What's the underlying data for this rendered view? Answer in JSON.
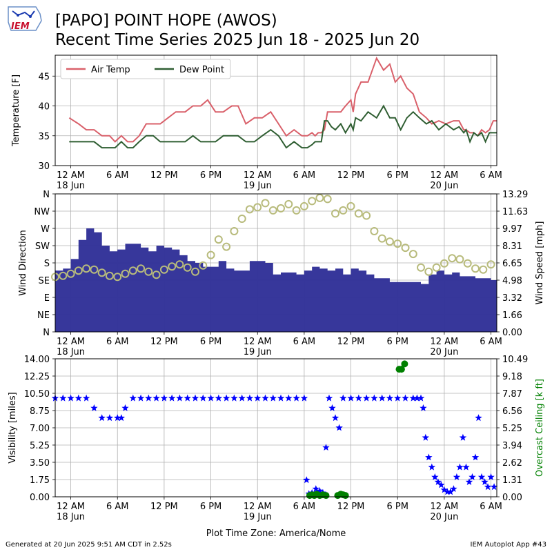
{
  "header": {
    "title_line1": "[PAPO] POINT HOPE (AWOS)",
    "title_line2": "Recent Time Series 2025 Jun 18 - 2025 Jun 20",
    "logo_text": "IEM"
  },
  "footer": {
    "generated": "Generated at 20 Jun 2025 9:51 AM CDT in 2.52s",
    "app": "IEM Autoplot App #43"
  },
  "chart_data": [
    {
      "type": "line",
      "name": "temperature-panel",
      "ylabel": "Temperature [F]",
      "ylim": [
        30,
        48.5
      ],
      "yticks": [
        30,
        35,
        40,
        45
      ],
      "grid": true,
      "legend": "top-left",
      "x_unit": "hours since 2025-06-17 22:00 AKDT",
      "xlim": [
        0,
        56.75
      ],
      "xticks": [
        {
          "h": 2,
          "label": "12 AM",
          "sub": "18 Jun"
        },
        {
          "h": 8,
          "label": "6 AM",
          "sub": ""
        },
        {
          "h": 14,
          "label": "12 PM",
          "sub": ""
        },
        {
          "h": 20,
          "label": "6 PM",
          "sub": ""
        },
        {
          "h": 26,
          "label": "12 AM",
          "sub": "19 Jun"
        },
        {
          "h": 32,
          "label": "6 AM",
          "sub": ""
        },
        {
          "h": 38,
          "label": "12 PM",
          "sub": ""
        },
        {
          "h": 44,
          "label": "6 PM",
          "sub": ""
        },
        {
          "h": 50,
          "label": "12 AM",
          "sub": "20 Jun"
        },
        {
          "h": 56,
          "label": "6 AM",
          "sub": ""
        }
      ],
      "series": [
        {
          "name": "Air Temp",
          "color": "#d9606a",
          "x": [
            1.8,
            3,
            4,
            5,
            6,
            7,
            7.7,
            8.5,
            9.3,
            10,
            10.8,
            11.7,
            12.6,
            13.5,
            14.5,
            15.5,
            16.7,
            17.7,
            18.7,
            19.6,
            20.6,
            21.6,
            22.7,
            23.5,
            24.5,
            25.6,
            26.6,
            27.7,
            28.7,
            29.7,
            30.7,
            31.7,
            32.4,
            33,
            33.4,
            33.8,
            34.2,
            34.6,
            35,
            35.5,
            36,
            36.7,
            37.3,
            38,
            38.3,
            38.6,
            39.3,
            40.2,
            41.3,
            42.2,
            43,
            43.7,
            44.4,
            45.2,
            46,
            46.8,
            47.7,
            48.4,
            49.3,
            50.2,
            51.2,
            51.9,
            52.5,
            52.8,
            53.3,
            53.8,
            54.3,
            54.8,
            55.3,
            55.8,
            56.3,
            56.75
          ],
          "y": [
            38,
            37,
            36,
            36,
            35,
            35,
            34,
            35,
            34,
            34,
            35,
            37,
            37,
            37,
            38,
            39,
            39,
            40,
            40,
            41,
            39,
            39,
            40,
            40,
            37,
            38,
            38,
            39,
            37,
            35,
            36,
            35,
            35,
            35.5,
            35,
            35.5,
            35.5,
            36,
            39,
            39,
            39,
            39,
            40,
            41,
            39,
            42,
            44,
            44,
            48,
            46,
            47,
            44,
            45,
            43,
            42,
            39,
            38,
            37,
            37.5,
            37,
            37.5,
            37.5,
            36,
            36,
            35.5,
            35.5,
            35,
            36,
            35.5,
            36,
            37.5,
            37.5
          ]
        },
        {
          "name": "Dew Point",
          "color": "#2f5e32",
          "x": [
            1.8,
            3,
            4,
            5,
            6,
            7,
            7.7,
            8.5,
            9.3,
            10,
            10.8,
            11.7,
            12.6,
            13.5,
            14.5,
            15.5,
            16.7,
            17.7,
            18.7,
            19.6,
            20.6,
            21.6,
            22.7,
            23.5,
            24.5,
            25.6,
            26.6,
            27.7,
            28.7,
            29.7,
            30.7,
            31.7,
            32.4,
            33,
            33.4,
            33.8,
            34.2,
            34.6,
            35,
            35.5,
            36,
            36.7,
            37.3,
            38,
            38.3,
            38.6,
            39.3,
            40.2,
            41.3,
            42.2,
            43,
            43.7,
            44.4,
            45.2,
            46,
            46.8,
            47.7,
            48.4,
            49.3,
            50.2,
            51.2,
            51.9,
            52.5,
            52.8,
            53.3,
            53.8,
            54.3,
            54.8,
            55.3,
            55.8,
            56.3,
            56.75
          ],
          "y": [
            34,
            34,
            34,
            34,
            33,
            33,
            33,
            34,
            33,
            33,
            34,
            35,
            35,
            34,
            34,
            34,
            34,
            35,
            34,
            34,
            34,
            35,
            35,
            35,
            34,
            34,
            35,
            36,
            35,
            33,
            34,
            33,
            33,
            33.5,
            34,
            34,
            34,
            37.5,
            37.5,
            36.5,
            36,
            37,
            35.5,
            37,
            36,
            38,
            37.5,
            39,
            38,
            40,
            38,
            38,
            36,
            38,
            39,
            38,
            37,
            37.5,
            36,
            37,
            36,
            36.5,
            35.5,
            36,
            34,
            35.5,
            35,
            35.5,
            34,
            35.5,
            35.5,
            35.5
          ]
        }
      ]
    },
    {
      "type": "bar+scatter",
      "name": "wind-panel",
      "ylabel": "Wind Direction",
      "ylabel_right": "Wind Speed [mph]",
      "ylim": [
        0,
        360
      ],
      "yticks": [
        {
          "v": 0,
          "label": "N"
        },
        {
          "v": 45,
          "label": "NE"
        },
        {
          "v": 90,
          "label": "E"
        },
        {
          "v": 135,
          "label": "SE"
        },
        {
          "v": 180,
          "label": "S"
        },
        {
          "v": 225,
          "label": "SW"
        },
        {
          "v": 270,
          "label": "W"
        },
        {
          "v": 315,
          "label": "NW"
        },
        {
          "v": 360,
          "label": "N"
        }
      ],
      "ylim_right": [
        0,
        13.29
      ],
      "yticks_right": [
        "0.00",
        "1.66",
        "3.32",
        "4.98",
        "6.65",
        "8.31",
        "9.97",
        "11.63",
        "13.29"
      ],
      "grid": true,
      "bar_color": "#333399",
      "marker_color": "#b8bb7c",
      "speed_series": {
        "name": "Wind Speed",
        "x": [
          0,
          1,
          2,
          3,
          4,
          5,
          6,
          7,
          8,
          9,
          10,
          11,
          12,
          13,
          14,
          15,
          16,
          17,
          18,
          19,
          20,
          21,
          22,
          23,
          24,
          25,
          26,
          27,
          28,
          29,
          30,
          31,
          32,
          33,
          34,
          35,
          36,
          37,
          38,
          39,
          40,
          41,
          42,
          43,
          44,
          45,
          46,
          47,
          48,
          49,
          50,
          51,
          52,
          53,
          54,
          55,
          56
        ],
        "y": [
          5.3,
          5.4,
          5.6,
          5.9,
          6.1,
          6.0,
          5.7,
          5.4,
          5.3,
          5.6,
          5.9,
          6.1,
          5.8,
          5.5,
          6.0,
          6.3,
          6.5,
          6.2,
          5.8,
          6.4,
          7.4,
          8.9,
          8.2,
          9.7,
          10.9,
          11.8,
          12.0,
          12.4,
          11.7,
          11.9,
          12.3,
          11.7,
          12.1,
          12.6,
          12.9,
          12.8,
          11.4,
          11.7,
          12.1,
          11.4,
          11.2,
          9.7,
          9.0,
          8.7,
          8.5,
          8.1,
          7.5,
          6.2,
          5.8,
          6.2,
          6.6,
          7.1,
          7.0,
          6.6,
          6.1,
          6.0,
          6.5
        ]
      },
      "direction_series": {
        "name": "Wind Direction",
        "x": [
          0,
          1,
          2,
          3,
          4,
          5,
          6,
          7,
          8,
          9,
          10,
          11,
          12,
          13,
          14,
          15,
          16,
          17,
          18,
          19,
          20,
          21,
          22,
          23,
          24,
          25,
          26,
          27,
          28,
          29,
          30,
          31,
          32,
          33,
          34,
          35,
          36,
          37,
          38,
          39,
          40,
          41,
          42,
          43,
          44,
          45,
          46,
          47,
          48,
          49,
          50,
          51,
          52,
          53,
          54,
          55,
          56
        ],
        "y": [
          160,
          165,
          190,
          240,
          270,
          260,
          225,
          210,
          215,
          230,
          230,
          220,
          210,
          225,
          220,
          215,
          200,
          185,
          180,
          170,
          170,
          185,
          165,
          160,
          160,
          185,
          185,
          180,
          150,
          155,
          155,
          150,
          160,
          170,
          165,
          160,
          165,
          150,
          165,
          160,
          150,
          140,
          140,
          130,
          130,
          130,
          130,
          125,
          150,
          160,
          150,
          155,
          145,
          145,
          140,
          140,
          135
        ]
      }
    },
    {
      "type": "scatter",
      "name": "visibility-panel",
      "ylabel": "Visibility [miles]",
      "ylabel_right": "Overcast Ceiling [k ft]",
      "ylim": [
        0,
        14
      ],
      "yticks": [
        "0.00",
        "1.75",
        "3.50",
        "5.25",
        "7.00",
        "8.75",
        "10.50",
        "12.25",
        "14.00"
      ],
      "ylim_right": [
        0,
        10.49
      ],
      "yticks_right": [
        "0.00",
        "1.31",
        "2.62",
        "3.94",
        "5.25",
        "6.56",
        "7.87",
        "9.18",
        "10.49"
      ],
      "grid": true,
      "visibility_color": "#0000ff",
      "ceiling_color": "#008000",
      "visibility_series": {
        "name": "Visibility",
        "x": [
          0,
          1,
          2,
          3,
          4,
          5,
          6,
          7,
          8,
          8.5,
          9,
          10,
          11,
          12,
          13,
          14,
          15,
          16,
          17,
          18,
          19,
          20,
          21,
          22,
          23,
          24,
          25,
          26,
          27,
          28,
          29,
          30,
          31,
          32,
          32.3,
          32.6,
          33,
          33.5,
          34,
          34.4,
          34.8,
          35.2,
          35.6,
          36,
          36.5,
          37,
          38,
          39,
          40,
          41,
          42,
          43,
          44,
          45,
          46,
          46.5,
          47,
          47.3,
          47.6,
          48,
          48.4,
          48.8,
          49.2,
          49.6,
          50,
          50.4,
          50.8,
          51.2,
          51.6,
          52,
          52.4,
          52.8,
          53.2,
          53.6,
          54,
          54.4,
          54.8,
          55.2,
          55.6,
          56,
          56.4
        ],
        "y": [
          10,
          10,
          10,
          10,
          10,
          9,
          8,
          8,
          8,
          8,
          9,
          10,
          10,
          10,
          10,
          10,
          10,
          10,
          10,
          10,
          10,
          10,
          10,
          10,
          10,
          10,
          10,
          10,
          10,
          10,
          10,
          10,
          10,
          10,
          1.7,
          0.3,
          0.4,
          0.8,
          0.6,
          0.4,
          5,
          10,
          9,
          8,
          7,
          10,
          10,
          10,
          10,
          10,
          10,
          10,
          10,
          10,
          10,
          10,
          10,
          9,
          6,
          4,
          3,
          2,
          1.5,
          1.2,
          0.7,
          0.5,
          0.5,
          0.8,
          2,
          3,
          6,
          3,
          1.5,
          2,
          4,
          8,
          2,
          1.5,
          1,
          2,
          1
        ]
      },
      "ceiling_series": {
        "name": "Overcast Ceiling",
        "x": [
          32.7,
          33,
          33.3,
          33.6,
          34,
          34.4,
          34.8,
          36.3,
          36.7,
          37,
          37.3,
          44.2,
          44.5,
          44.9
        ],
        "y": [
          0.1,
          0.15,
          0.1,
          0.2,
          0.1,
          0.15,
          0.1,
          0.1,
          0.2,
          0.15,
          0.1,
          9.7,
          9.7,
          10.1
        ]
      }
    }
  ],
  "x_axis_label": "Plot Time Zone: America/Nome"
}
